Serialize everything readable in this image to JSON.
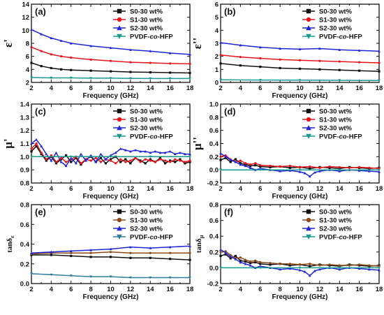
{
  "colors": {
    "S0-30 wt%": "#111111",
    "S1-30 wt%": "#e8141c",
    "S2-30 wt%": "#1f24d8",
    "PVDF-co-HFP": "#1a9a8e",
    "S1-30 wt% (e,f)": "#8b4a1a",
    "PVDF-co-HFP (e)": "#2e7e9e"
  },
  "chart_data": [
    {
      "type": "line",
      "panel_label": "(a)",
      "ylabel": "ε'",
      "xlabel": "Frequency (GHz)",
      "xlim": [
        2,
        18
      ],
      "ylim": [
        2,
        14
      ],
      "xticks": [
        "2",
        "4",
        "6",
        "8",
        "10",
        "12",
        "14",
        "16",
        "18"
      ],
      "yticks": [
        "2",
        "4",
        "6",
        "8",
        "10",
        "12",
        "14"
      ],
      "legend": [
        "S0-30 wt%",
        "S1-30 wt%",
        "S2-30 wt%",
        "PVDF-co-HFP"
      ],
      "legend_place": "top-right",
      "series": [
        {
          "name": "S0-30 wt%",
          "x": [
            2,
            3,
            4,
            5,
            6,
            8,
            10,
            12,
            14,
            16,
            18
          ],
          "y": [
            5.0,
            4.5,
            4.2,
            4.0,
            3.9,
            3.8,
            3.7,
            3.6,
            3.55,
            3.5,
            3.45
          ]
        },
        {
          "name": "S1-30 wt%",
          "x": [
            2,
            3,
            4,
            5,
            6,
            8,
            10,
            12,
            14,
            16,
            18
          ],
          "y": [
            7.4,
            6.8,
            6.3,
            6.0,
            5.8,
            5.5,
            5.3,
            5.1,
            5.0,
            4.9,
            4.85
          ]
        },
        {
          "name": "S2-30 wt%",
          "x": [
            2,
            3,
            4,
            5,
            6,
            8,
            10,
            12,
            14,
            16,
            18
          ],
          "y": [
            10.1,
            9.4,
            8.8,
            8.4,
            8.0,
            7.6,
            7.3,
            7.0,
            6.8,
            6.5,
            6.3
          ]
        },
        {
          "name": "PVDF-co-HFP",
          "x": [
            2,
            4,
            6,
            8,
            10,
            12,
            14,
            16,
            18
          ],
          "y": [
            2.75,
            2.7,
            2.7,
            2.65,
            2.65,
            2.62,
            2.6,
            2.6,
            2.6
          ]
        }
      ]
    },
    {
      "type": "line",
      "panel_label": "(b)",
      "ylabel": "ε''",
      "xlabel": "Frequency (GHz)",
      "xlim": [
        2,
        18
      ],
      "ylim": [
        0,
        6
      ],
      "xticks": [
        "2",
        "4",
        "6",
        "8",
        "10",
        "12",
        "14",
        "16",
        "18"
      ],
      "yticks": [
        "0",
        "1",
        "2",
        "3",
        "4",
        "5",
        "6"
      ],
      "legend": [
        "S0-30 wt%",
        "S1-30 wt%",
        "S2-30 wt%",
        "PVDF-co-HFP"
      ],
      "legend_place": "top-right",
      "series": [
        {
          "name": "S0-30 wt%",
          "x": [
            2,
            4,
            6,
            8,
            10,
            12,
            14,
            16,
            18
          ],
          "y": [
            1.45,
            1.3,
            1.2,
            1.1,
            1.05,
            1.0,
            0.95,
            0.9,
            0.85
          ]
        },
        {
          "name": "S1-30 wt%",
          "x": [
            2,
            4,
            6,
            8,
            10,
            12,
            14,
            16,
            18
          ],
          "y": [
            2.1,
            1.95,
            1.85,
            1.75,
            1.7,
            1.65,
            1.6,
            1.55,
            1.5
          ]
        },
        {
          "name": "S2-30 wt%",
          "x": [
            2,
            4,
            6,
            8,
            10,
            12,
            14,
            16,
            18
          ],
          "y": [
            3.05,
            2.85,
            2.7,
            2.6,
            2.55,
            2.6,
            2.5,
            2.45,
            2.4
          ]
        },
        {
          "name": "PVDF-co-HFP",
          "x": [
            2,
            6,
            10,
            14,
            18
          ],
          "y": [
            0.2,
            0.18,
            0.17,
            0.16,
            0.15
          ]
        }
      ]
    },
    {
      "type": "line",
      "panel_label": "(c)",
      "ylabel": "μ'",
      "xlabel": "Frequency (GHz)",
      "xlim": [
        2,
        18
      ],
      "ylim": [
        0.8,
        1.4
      ],
      "xticks": [
        "2",
        "4",
        "6",
        "8",
        "10",
        "12",
        "14",
        "16",
        "18"
      ],
      "yticks": [
        "0.8",
        "0.9",
        "1.0",
        "1.1",
        "1.2",
        "1.3",
        "1.4"
      ],
      "legend": [
        "S0-30 wt%",
        "S1-30 wt%",
        "S2-30 wt%",
        "PVDF-co-HFP"
      ],
      "legend_place": "top-right",
      "series": [
        {
          "name": "S0-30 wt%",
          "x": [
            2,
            2.5,
            3,
            3.5,
            4,
            4.5,
            5,
            5.5,
            6,
            6.5,
            7,
            7.5,
            8,
            8.5,
            9,
            9.5,
            10,
            10.5,
            11,
            11.5,
            12,
            12.5,
            13,
            13.5,
            14,
            14.5,
            15,
            15.5,
            16,
            16.5,
            17,
            17.5,
            18
          ],
          "y": [
            1.04,
            1.08,
            1.02,
            0.97,
            1.0,
            0.95,
            0.98,
            1.01,
            0.96,
            0.99,
            0.94,
            0.98,
            1.0,
            0.96,
            0.99,
            0.95,
            0.98,
            1.0,
            0.96,
            0.98,
            0.95,
            0.99,
            0.97,
            0.95,
            0.98,
            0.96,
            0.99,
            0.95,
            0.97,
            0.96,
            0.98,
            0.95,
            0.96
          ]
        },
        {
          "name": "S1-30 wt%",
          "x": [
            2,
            2.5,
            3,
            3.5,
            4,
            4.5,
            5,
            5.5,
            6,
            6.5,
            7,
            7.5,
            8,
            8.5,
            9,
            9.5,
            10,
            10.5,
            11,
            11.5,
            12,
            12.5,
            13,
            13.5,
            14,
            14.5,
            15,
            15.5,
            16,
            16.5,
            17,
            17.5,
            18
          ],
          "y": [
            1.06,
            1.1,
            1.03,
            0.98,
            1.01,
            0.96,
            0.99,
            0.96,
            0.98,
            1.0,
            0.95,
            0.98,
            0.97,
            0.99,
            0.96,
            0.98,
            0.97,
            0.95,
            0.98,
            0.96,
            0.97,
            0.99,
            0.96,
            0.98,
            0.97,
            0.96,
            0.98,
            0.97,
            0.96,
            0.98,
            0.97,
            0.96,
            0.97
          ]
        },
        {
          "name": "S2-30 wt%",
          "x": [
            2,
            2.5,
            3,
            3.5,
            4,
            4.5,
            5,
            5.5,
            6,
            6.5,
            7,
            7.5,
            8,
            8.5,
            9,
            9.5,
            10,
            10.5,
            11,
            11.5,
            12,
            12.5,
            13,
            13.5,
            14,
            14.5,
            15,
            15.5,
            16,
            16.5,
            17,
            17.5,
            18
          ],
          "y": [
            1.1,
            1.13,
            1.08,
            1.02,
            0.97,
            1.03,
            0.96,
            0.93,
            0.99,
            0.95,
            1.02,
            0.97,
            1.01,
            0.96,
            1.02,
            0.98,
            1.01,
            1.03,
            1.06,
            1.05,
            1.04,
            1.05,
            1.04,
            1.04,
            1.03,
            1.04,
            1.03,
            1.03,
            1.04,
            1.02,
            1.03,
            1.02,
            1.02
          ]
        },
        {
          "name": "PVDF-co-HFP",
          "x": [
            2,
            6,
            10,
            14,
            18
          ],
          "y": [
            1.0,
            1.0,
            1.0,
            1.0,
            1.0
          ]
        }
      ]
    },
    {
      "type": "line",
      "panel_label": "(d)",
      "ylabel": "μ''",
      "xlabel": "Frequency (GHz)",
      "xlim": [
        2,
        18
      ],
      "ylim": [
        -0.2,
        1.0
      ],
      "xticks": [
        "2",
        "4",
        "6",
        "8",
        "10",
        "12",
        "14",
        "16",
        "18"
      ],
      "yticks": [
        "-0.2",
        "0.0",
        "0.2",
        "0.4",
        "0.6",
        "0.8",
        "1.0"
      ],
      "legend": [
        "S0-30 wt%",
        "S1-30 wt%",
        "S2-30 wt%",
        "PVDF-co-HFP"
      ],
      "legend_place": "top-right",
      "series": [
        {
          "name": "S0-30 wt%",
          "x": [
            2,
            2.5,
            3,
            3.5,
            4,
            4.5,
            5,
            5.5,
            6,
            7,
            8,
            9,
            10,
            11,
            12,
            13,
            14,
            15,
            16,
            17,
            18
          ],
          "y": [
            0.15,
            0.18,
            0.12,
            0.16,
            0.1,
            0.08,
            0.06,
            0.07,
            0.05,
            0.04,
            0.05,
            0.03,
            0.04,
            0.02,
            0.04,
            0.03,
            0.02,
            0.04,
            0.03,
            0.02,
            0.03
          ]
        },
        {
          "name": "S1-30 wt%",
          "x": [
            2,
            2.5,
            3,
            3.5,
            4,
            4.5,
            5,
            5.5,
            6,
            7,
            8,
            9,
            10,
            11,
            12,
            13,
            14,
            15,
            16,
            17,
            18
          ],
          "y": [
            0.2,
            0.22,
            0.16,
            0.12,
            0.14,
            0.1,
            0.08,
            0.1,
            0.07,
            0.06,
            0.05,
            0.06,
            0.04,
            0.05,
            0.03,
            0.05,
            0.04,
            0.03,
            0.04,
            0.03,
            0.02
          ]
        },
        {
          "name": "S2-30 wt%",
          "x": [
            2,
            2.5,
            3,
            3.5,
            4,
            4.5,
            5,
            5.5,
            6,
            7,
            8,
            9,
            10,
            10.5,
            11,
            11.5,
            12,
            13,
            14,
            15,
            16,
            17,
            18
          ],
          "y": [
            0.25,
            0.2,
            0.15,
            0.12,
            0.08,
            0.06,
            0.03,
            0.0,
            0.02,
            0.0,
            -0.02,
            -0.01,
            -0.03,
            -0.05,
            -0.1,
            -0.04,
            -0.02,
            0.0,
            -0.02,
            0.0,
            -0.01,
            -0.02,
            -0.03
          ]
        },
        {
          "name": "PVDF-co-HFP",
          "x": [
            2,
            6,
            10,
            14,
            18
          ],
          "y": [
            0.0,
            0.0,
            0.0,
            0.0,
            0.0
          ]
        }
      ]
    },
    {
      "type": "line",
      "panel_label": "(e)",
      "ylabel": "tanδε",
      "xlabel": "Frequency (GHz)",
      "xlim": [
        2,
        18
      ],
      "ylim": [
        0.0,
        0.8
      ],
      "xticks": [
        "2",
        "4",
        "6",
        "8",
        "10",
        "12",
        "14",
        "16",
        "18"
      ],
      "yticks": [
        "0.0",
        "0.2",
        "0.4",
        "0.6",
        "0.8"
      ],
      "legend": [
        "S0-30 wt%",
        "S1-30 wt%",
        "S2-30 wt%",
        "PVDF-co-HFP"
      ],
      "legend_place": "top-right",
      "series": [
        {
          "name": "S0-30 wt%",
          "x": [
            2,
            4,
            6,
            8,
            10,
            12,
            14,
            16,
            18
          ],
          "y": [
            0.29,
            0.29,
            0.28,
            0.27,
            0.27,
            0.26,
            0.26,
            0.25,
            0.24
          ]
        },
        {
          "name": "S1-30 wt%",
          "x": [
            2,
            4,
            6,
            8,
            10,
            12,
            14,
            16,
            18
          ],
          "y": [
            0.3,
            0.31,
            0.31,
            0.31,
            0.32,
            0.31,
            0.31,
            0.31,
            0.31
          ]
        },
        {
          "name": "S2-30 wt%",
          "x": [
            2,
            4,
            6,
            8,
            10,
            12,
            14,
            16,
            18
          ],
          "y": [
            0.31,
            0.32,
            0.33,
            0.34,
            0.35,
            0.37,
            0.36,
            0.37,
            0.38
          ]
        },
        {
          "name": "PVDF-co-HFP",
          "x": [
            2,
            4,
            6,
            8,
            10,
            12,
            14,
            16,
            18
          ],
          "y": [
            0.1,
            0.09,
            0.08,
            0.07,
            0.07,
            0.06,
            0.06,
            0.06,
            0.06
          ]
        }
      ]
    },
    {
      "type": "line",
      "panel_label": "(f)",
      "ylabel": "tanδμ",
      "xlabel": "Frequency (GHz)",
      "xlim": [
        2,
        18
      ],
      "ylim": [
        -0.2,
        0.8
      ],
      "xticks": [
        "2",
        "4",
        "6",
        "8",
        "10",
        "12",
        "14",
        "16",
        "18"
      ],
      "yticks": [
        "-0.2",
        "0.0",
        "0.2",
        "0.4",
        "0.6",
        "0.8"
      ],
      "legend": [
        "S0-30 wt%",
        "S1-30 wt%",
        "S2-30 wt%",
        "PVDF-co-HFP"
      ],
      "legend_place": "top-right",
      "series": [
        {
          "name": "S0-30 wt%",
          "x": [
            2,
            2.5,
            3,
            3.5,
            4,
            4.5,
            5,
            5.5,
            6,
            7,
            8,
            9,
            10,
            11,
            12,
            13,
            14,
            15,
            16,
            17,
            18
          ],
          "y": [
            0.15,
            0.17,
            0.12,
            0.15,
            0.09,
            0.08,
            0.06,
            0.07,
            0.05,
            0.04,
            0.05,
            0.03,
            0.04,
            0.02,
            0.04,
            0.03,
            0.02,
            0.04,
            0.03,
            0.02,
            0.03
          ]
        },
        {
          "name": "S1-30 wt%",
          "x": [
            2,
            2.5,
            3,
            3.5,
            4,
            4.5,
            5,
            5.5,
            6,
            7,
            8,
            9,
            10,
            11,
            12,
            13,
            14,
            15,
            16,
            17,
            18
          ],
          "y": [
            0.2,
            0.21,
            0.16,
            0.12,
            0.13,
            0.1,
            0.08,
            0.09,
            0.07,
            0.06,
            0.05,
            0.05,
            0.04,
            0.05,
            0.03,
            0.04,
            0.03,
            0.03,
            0.04,
            0.03,
            0.02
          ]
        },
        {
          "name": "S2-30 wt%",
          "x": [
            2,
            2.5,
            3,
            3.5,
            4,
            4.5,
            5,
            5.5,
            6,
            7,
            8,
            9,
            10,
            10.5,
            11,
            11.5,
            12,
            13,
            14,
            15,
            16,
            17,
            18
          ],
          "y": [
            0.23,
            0.19,
            0.14,
            0.11,
            0.07,
            0.05,
            0.03,
            0.0,
            0.02,
            0.0,
            -0.02,
            -0.01,
            -0.03,
            -0.05,
            -0.1,
            -0.04,
            -0.02,
            0.0,
            -0.02,
            0.0,
            -0.01,
            -0.02,
            -0.03
          ]
        },
        {
          "name": "PVDF-co-HFP",
          "x": [
            2,
            6,
            10,
            14,
            18
          ],
          "y": [
            0.0,
            0.0,
            0.0,
            0.0,
            0.0
          ]
        }
      ]
    }
  ]
}
